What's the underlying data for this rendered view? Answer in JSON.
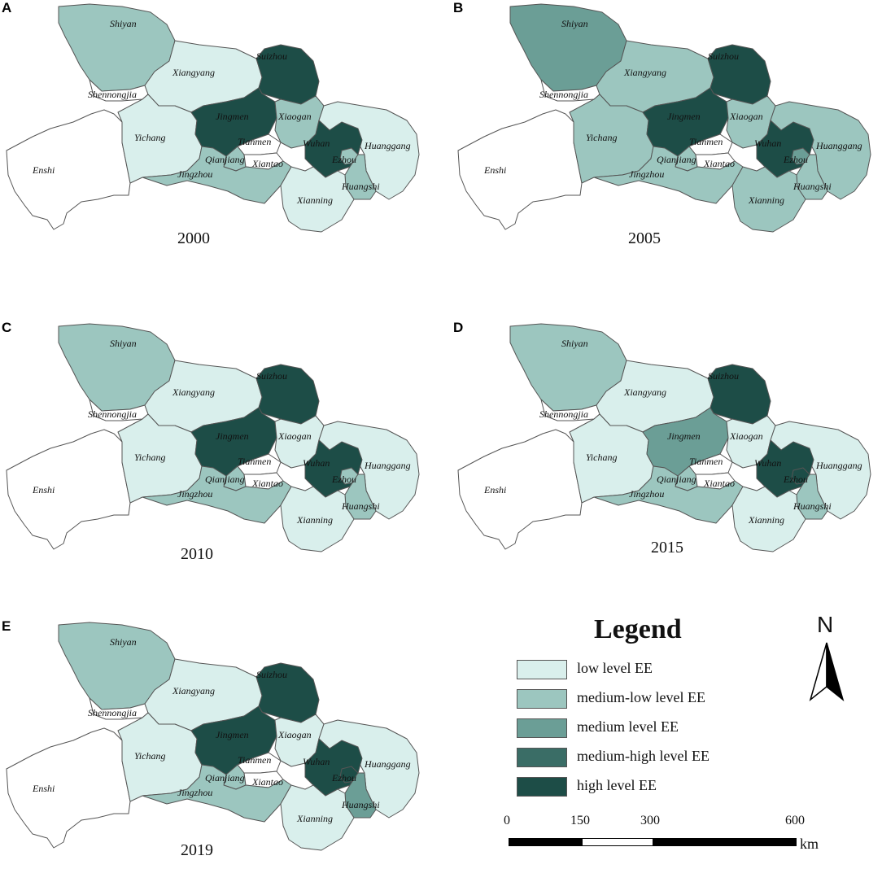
{
  "colors": {
    "low": "#d9efec",
    "medium_low": "#9cc6bf",
    "medium": "#6b9e96",
    "medium_high": "#3a6d66",
    "high": "#1d4d47",
    "none": "#ffffff"
  },
  "place_labels": {
    "shiyan": "Shiyan",
    "xiangyang": "Xiangyang",
    "suizhou": "Suizhou",
    "shennongjia": "Shennongjia",
    "jingmen": "Jingmen",
    "xiaogan": "Xiaogan",
    "yichang": "Yichang",
    "tianmen": "Tianmen",
    "wuhan": "Wuhan",
    "huanggang": "Huanggang",
    "qianjiang": "Qianjiang",
    "xiantao": "Xiantao",
    "ezhou": "Ezhou",
    "enshi": "Enshi",
    "jingzhou": "Jingzhou",
    "huangshi": "Huangshi",
    "xianning": "Xianning"
  },
  "panels": [
    {
      "letter": "A",
      "year": "2000",
      "levels": {
        "shiyan": "medium_low",
        "xiangyang": "low",
        "suizhou": "high",
        "shennongjia": "none",
        "jingmen": "high",
        "xiaogan": "medium_low",
        "yichang": "low",
        "tianmen": "none",
        "wuhan": "high",
        "huanggang": "low",
        "qianjiang": "medium_low",
        "xiantao": "none",
        "ezhou": "medium_low",
        "enshi": "none",
        "jingzhou": "medium_low",
        "huangshi": "medium_low",
        "xianning": "low"
      }
    },
    {
      "letter": "B",
      "year": "2005",
      "levels": {
        "shiyan": "medium",
        "xiangyang": "medium_low",
        "suizhou": "high",
        "shennongjia": "none",
        "jingmen": "high",
        "xiaogan": "medium_low",
        "yichang": "medium_low",
        "tianmen": "none",
        "wuhan": "high",
        "huanggang": "medium_low",
        "qianjiang": "medium_low",
        "xiantao": "none",
        "ezhou": "medium",
        "enshi": "none",
        "jingzhou": "medium_low",
        "huangshi": "medium_low",
        "xianning": "medium_low"
      }
    },
    {
      "letter": "C",
      "year": "2010",
      "levels": {
        "shiyan": "medium_low",
        "xiangyang": "low",
        "suizhou": "high",
        "shennongjia": "none",
        "jingmen": "high",
        "xiaogan": "low",
        "yichang": "low",
        "tianmen": "none",
        "wuhan": "high",
        "huanggang": "low",
        "qianjiang": "medium_low",
        "xiantao": "none",
        "ezhou": "medium_low",
        "enshi": "none",
        "jingzhou": "medium_low",
        "huangshi": "medium_low",
        "xianning": "low"
      }
    },
    {
      "letter": "D",
      "year": "2015",
      "levels": {
        "shiyan": "medium_low",
        "xiangyang": "low",
        "suizhou": "high",
        "shennongjia": "none",
        "jingmen": "medium",
        "xiaogan": "low",
        "yichang": "low",
        "tianmen": "none",
        "wuhan": "high",
        "huanggang": "low",
        "qianjiang": "medium_low",
        "xiantao": "none",
        "ezhou": "high",
        "enshi": "none",
        "jingzhou": "medium_low",
        "huangshi": "medium_low",
        "xianning": "low"
      }
    },
    {
      "letter": "E",
      "year": "2019",
      "levels": {
        "shiyan": "medium_low",
        "xiangyang": "low",
        "suizhou": "high",
        "shennongjia": "none",
        "jingmen": "high",
        "xiaogan": "low",
        "yichang": "low",
        "tianmen": "none",
        "wuhan": "high",
        "huanggang": "low",
        "qianjiang": "medium_low",
        "xiantao": "none",
        "ezhou": "high",
        "enshi": "none",
        "jingzhou": "medium_low",
        "huangshi": "medium",
        "xianning": "low"
      }
    }
  ],
  "legend": {
    "title": "Legend",
    "items": [
      {
        "label": "low level EE",
        "level": "low"
      },
      {
        "label": "medium-low level EE",
        "level": "medium_low"
      },
      {
        "label": "medium level EE",
        "level": "medium"
      },
      {
        "label": "medium-high level EE",
        "level": "medium_high"
      },
      {
        "label": "high level EE",
        "level": "high"
      }
    ]
  },
  "north_arrow": {
    "label": "N"
  },
  "scale_bar": {
    "ticks": [
      "0",
      "150",
      "300",
      "600"
    ],
    "unit": "km"
  }
}
